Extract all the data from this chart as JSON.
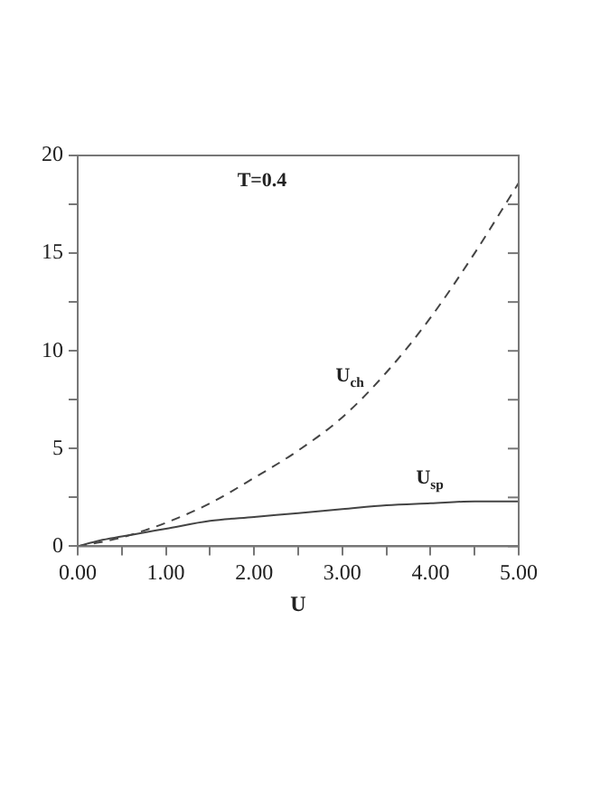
{
  "chart_data": {
    "type": "line",
    "xlabel": "U",
    "x": [
      0,
      0.25,
      0.5,
      0.75,
      1,
      1.5,
      2,
      2.5,
      3,
      3.5,
      4,
      4.5,
      5
    ],
    "series": [
      {
        "name": "U$_{ch}$",
        "color": "#444444",
        "line_style": "dashed",
        "values": [
          0,
          0.2,
          0.45,
          0.8,
          1.2,
          2.2,
          3.5,
          4.9,
          6.6,
          8.9,
          11.7,
          15,
          18.6
        ]
      },
      {
        "name": "U$_{sp}$",
        "color": "#444444",
        "line_style": "solid",
        "values": [
          0,
          0.3,
          0.5,
          0.7,
          0.9,
          1.3,
          1.5,
          1.7,
          1.9,
          2.1,
          2.2,
          2.3,
          2.3
        ]
      }
    ],
    "xlim": [
      0,
      5
    ],
    "ylim": [
      0,
      20
    ],
    "xticks": [
      {
        "value": 0,
        "label": "0.00"
      },
      {
        "value": 0.5,
        "label": null
      },
      {
        "value": 1,
        "label": "1.00"
      },
      {
        "value": 1.5,
        "label": null
      },
      {
        "value": 2,
        "label": "2.00"
      },
      {
        "value": 2.5,
        "label": null
      },
      {
        "value": 3,
        "label": "3.00"
      },
      {
        "value": 3.5,
        "label": null
      },
      {
        "value": 4,
        "label": "4.00"
      },
      {
        "value": 4.5,
        "label": null
      },
      {
        "value": 5,
        "label": "5.00"
      }
    ],
    "yticks": [
      0,
      {
        "value": 2.5,
        "label": null
      },
      5,
      {
        "value": 7.5,
        "label": null
      },
      10,
      {
        "value": 12.5,
        "label": null
      },
      15,
      {
        "value": 17.5,
        "label": null
      },
      20
    ],
    "annotations": [
      "T=0.4"
    ],
    "grid": false,
    "legend": false,
    "marker": "none"
  }
}
